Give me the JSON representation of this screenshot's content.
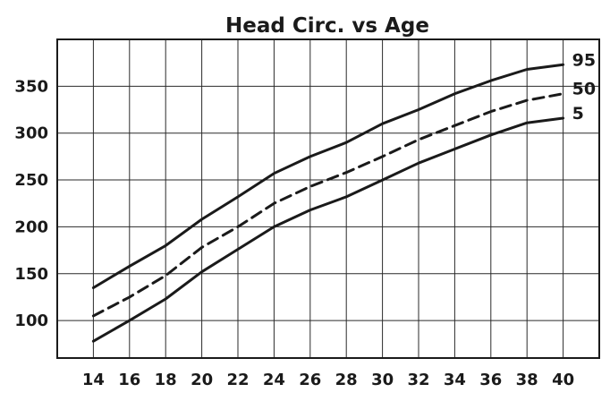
{
  "chart_data": {
    "type": "line",
    "title": "Head Circ. vs Age",
    "xlabel": "",
    "ylabel": "",
    "xlim": [
      12,
      42
    ],
    "ylim": [
      60,
      400
    ],
    "grid": true,
    "x_ticks": [
      14,
      16,
      18,
      20,
      22,
      24,
      26,
      28,
      30,
      32,
      34,
      36,
      38,
      40
    ],
    "y_ticks": [
      100,
      150,
      200,
      250,
      300,
      350
    ],
    "x": [
      14,
      16,
      18,
      20,
      22,
      24,
      26,
      28,
      30,
      32,
      34,
      36,
      38,
      40
    ],
    "series": [
      {
        "name": "95",
        "style": "solid",
        "values": [
          135,
          158,
          180,
          208,
          232,
          257,
          275,
          290,
          310,
          325,
          342,
          356,
          368,
          373
        ]
      },
      {
        "name": "50",
        "style": "dashed",
        "values": [
          105,
          125,
          148,
          178,
          200,
          225,
          243,
          258,
          275,
          293,
          308,
          323,
          335,
          342
        ]
      },
      {
        "name": "5",
        "style": "solid",
        "values": [
          78,
          100,
          123,
          152,
          176,
          200,
          218,
          232,
          250,
          268,
          283,
          298,
          311,
          316
        ]
      }
    ]
  }
}
